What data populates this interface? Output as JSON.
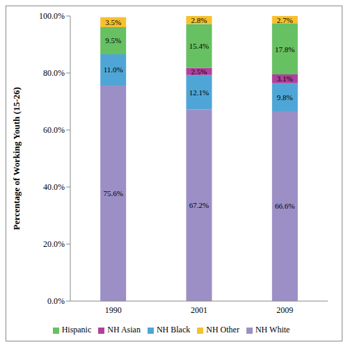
{
  "chart_data": {
    "type": "bar",
    "stacked": true,
    "data_labels": true,
    "legend": "bottom",
    "grid": false,
    "y_label": "Percentage of Working Youth (15-26)",
    "categories": [
      "1990",
      "2001",
      "2009"
    ],
    "ylim": [
      0,
      100
    ],
    "yticks": [
      {
        "value": 0,
        "label": "0.0%"
      },
      {
        "value": 20,
        "label": "20.0%"
      },
      {
        "value": 40,
        "label": "40.0%"
      },
      {
        "value": 60,
        "label": "60.0%"
      },
      {
        "value": 80,
        "label": "80.0%"
      },
      {
        "value": 100,
        "label": "100.0%"
      }
    ],
    "series": [
      {
        "name": "NH White",
        "color": "#9c8fc6",
        "values": [
          75.6,
          67.2,
          66.6
        ],
        "value_labels": [
          "75.6%",
          "67.2%",
          "66.6%"
        ]
      },
      {
        "name": "NH Black",
        "color": "#4fa6d6",
        "values": [
          11.0,
          12.1,
          9.8
        ],
        "value_labels": [
          "11.0%",
          "12.1%",
          "9.8%"
        ]
      },
      {
        "name": "NH Asian",
        "color": "#b0409e",
        "values": [
          null,
          2.5,
          3.1
        ],
        "value_labels": [
          null,
          "2.5%",
          "3.1%"
        ]
      },
      {
        "name": "Hispanic",
        "color": "#67c062",
        "values": [
          9.5,
          15.4,
          17.8
        ],
        "value_labels": [
          "9.5%",
          "15.4%",
          "17.8%"
        ]
      },
      {
        "name": "NH Other",
        "color": "#f7c02e",
        "values": [
          3.5,
          2.8,
          2.7
        ],
        "value_labels": [
          "3.5%",
          "2.8%",
          "2.7%"
        ]
      }
    ]
  }
}
